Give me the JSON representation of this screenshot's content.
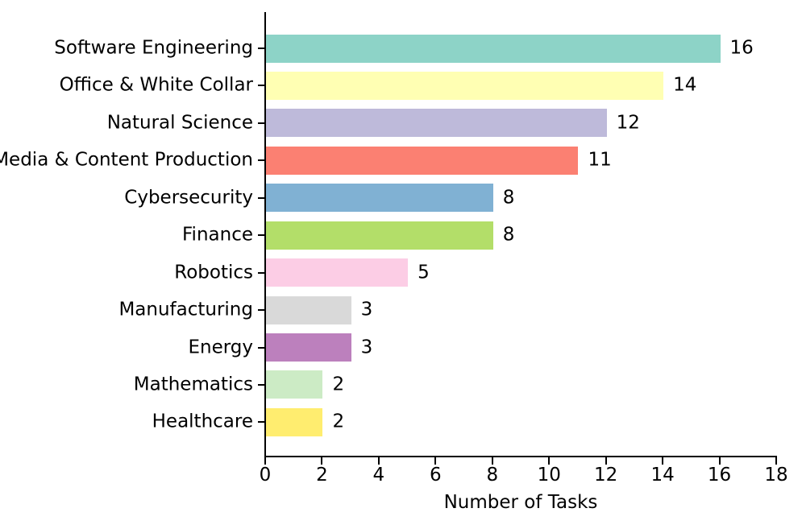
{
  "chart_data": {
    "type": "bar",
    "orientation": "horizontal",
    "title": "",
    "xlabel": "Number of Tasks",
    "ylabel": "",
    "xlim": [
      0,
      18
    ],
    "x_ticks": [
      0,
      2,
      4,
      6,
      8,
      10,
      12,
      14,
      16,
      18
    ],
    "grid": false,
    "legend": false,
    "categories": [
      "Software Engineering",
      "Office & White Collar",
      "Natural Science",
      "Media & Content Production",
      "Cybersecurity",
      "Finance",
      "Robotics",
      "Manufacturing",
      "Energy",
      "Mathematics",
      "Healthcare"
    ],
    "values": [
      16,
      14,
      12,
      11,
      8,
      8,
      5,
      3,
      3,
      2,
      2
    ],
    "value_labels": [
      "16",
      "14",
      "12",
      "11",
      "8",
      "8",
      "5",
      "3",
      "3",
      "2",
      "2"
    ],
    "bar_colors": [
      "#8dd3c7",
      "#ffffb3",
      "#bebada",
      "#fb8072",
      "#80b1d3",
      "#b3de69",
      "#fccde5",
      "#d9d9d9",
      "#bc80bd",
      "#ccebc5",
      "#ffed6f"
    ],
    "axis_color": "#000000",
    "text_color": "#000000",
    "background_color": "#ffffff"
  }
}
